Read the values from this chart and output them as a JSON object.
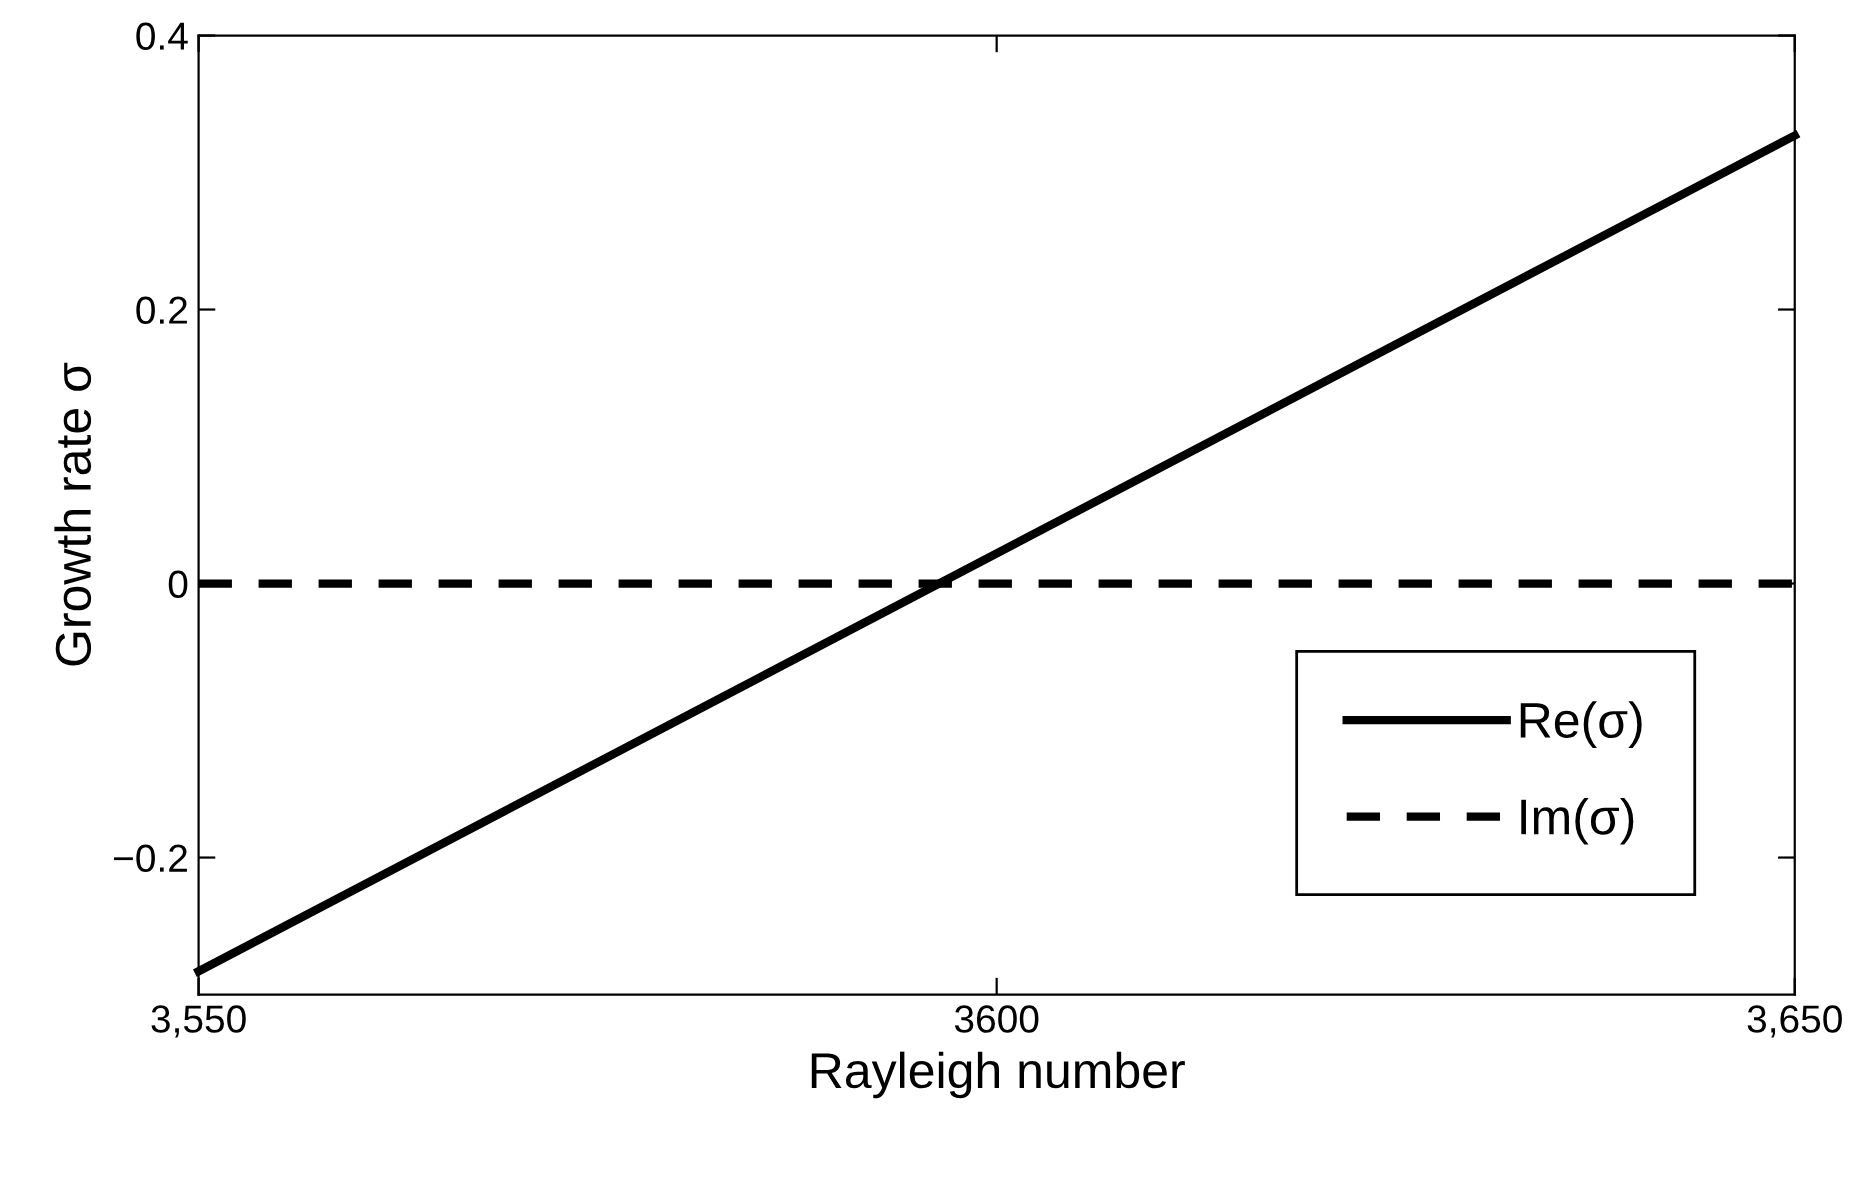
{
  "chart_data": {
    "type": "line",
    "xlabel": "Rayleigh number",
    "ylabel": "Growth rate σ",
    "x": [
      3550,
      3650
    ],
    "series": [
      {
        "name": "Re(σ)",
        "color": "#000000",
        "values": [
          -0.283,
          0.327
        ],
        "line_style": "solid"
      },
      {
        "name": "Im(σ)",
        "color": "#000000",
        "values": [
          0,
          0
        ],
        "line_style": "dashed"
      }
    ],
    "xlim": [
      3550,
      3650
    ],
    "xticks": [
      {
        "value": 3550,
        "label": "3,550"
      },
      3600,
      {
        "value": 3650,
        "label": "3,650"
      }
    ],
    "ylim": [
      -0.3,
      0.4
    ],
    "yticks": [
      {
        "value": -0.2,
        "label": "−0.2"
      },
      0,
      0.2,
      0.4
    ],
    "grid": false,
    "legend": "bottom right",
    "marker": "none"
  }
}
